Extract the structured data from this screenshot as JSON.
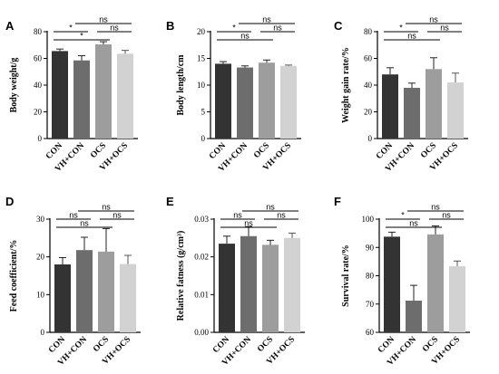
{
  "chart_data": [
    {
      "type": "bar",
      "panel": "A",
      "categories": [
        "CON",
        "VH+CON",
        "OCS",
        "VH+OCS"
      ],
      "values": [
        65.5,
        58.5,
        70.5,
        63.5
      ],
      "errors": [
        1.5,
        3.5,
        2.0,
        2.5
      ],
      "ylabel": "Body weight/g",
      "ylim": [
        0,
        80
      ],
      "yticks": [
        0,
        20,
        40,
        60,
        80
      ],
      "colors": [
        "#333333",
        "#6d6d6d",
        "#9d9d9d",
        "#d2d2d2"
      ],
      "significance": [
        {
          "from": 0,
          "to": 1,
          "label": "*"
        },
        {
          "from": 0,
          "to": 2,
          "label": "*"
        },
        {
          "from": 1,
          "to": 3,
          "label": "ns"
        },
        {
          "from": 2,
          "to": 3,
          "label": "ns"
        }
      ]
    },
    {
      "type": "bar",
      "panel": "B",
      "categories": [
        "CON",
        "VH+CON",
        "OCS",
        "VH+OCS"
      ],
      "values": [
        14.0,
        13.3,
        14.2,
        13.6
      ],
      "errors": [
        0.4,
        0.3,
        0.5,
        0.15
      ],
      "ylabel": "Body length/cm",
      "ylim": [
        0,
        20
      ],
      "yticks": [
        0,
        5,
        10,
        15,
        20
      ],
      "colors": [
        "#333333",
        "#6d6d6d",
        "#9d9d9d",
        "#d2d2d2"
      ],
      "significance": [
        {
          "from": 0,
          "to": 1,
          "label": "*"
        },
        {
          "from": 0,
          "to": 2,
          "label": "ns"
        },
        {
          "from": 1,
          "to": 3,
          "label": "ns"
        },
        {
          "from": 2,
          "to": 3,
          "label": "ns"
        }
      ]
    },
    {
      "type": "bar",
      "panel": "C",
      "categories": [
        "CON",
        "VH+CON",
        "OCS",
        "VH+OCS"
      ],
      "values": [
        48,
        38,
        52,
        42
      ],
      "errors": [
        5,
        3.5,
        8.5,
        7
      ],
      "ylabel": "Weight gain rate/%",
      "ylim": [
        0,
        80
      ],
      "yticks": [
        0,
        20,
        40,
        60,
        80
      ],
      "colors": [
        "#333333",
        "#6d6d6d",
        "#9d9d9d",
        "#d2d2d2"
      ],
      "significance": [
        {
          "from": 0,
          "to": 1,
          "label": "*"
        },
        {
          "from": 0,
          "to": 2,
          "label": "ns"
        },
        {
          "from": 1,
          "to": 3,
          "label": "ns"
        },
        {
          "from": 2,
          "to": 3,
          "label": "ns"
        }
      ]
    },
    {
      "type": "bar",
      "panel": "D",
      "categories": [
        "CON",
        "VH+CON",
        "OCS",
        "VH+OCS"
      ],
      "values": [
        18,
        21.8,
        21.4,
        18.1
      ],
      "errors": [
        1.8,
        3.4,
        6.1,
        2.3
      ],
      "ylabel": "Feed coefficient/%",
      "ylim": [
        0,
        30
      ],
      "yticks": [
        0,
        10,
        20,
        30
      ],
      "colors": [
        "#333333",
        "#6d6d6d",
        "#9d9d9d",
        "#d2d2d2"
      ],
      "significance": [
        {
          "from": 0,
          "to": 1,
          "label": "ns"
        },
        {
          "from": 0,
          "to": 2,
          "label": "ns"
        },
        {
          "from": 1,
          "to": 3,
          "label": "ns"
        },
        {
          "from": 2,
          "to": 3,
          "label": "ns"
        }
      ]
    },
    {
      "type": "bar",
      "panel": "E",
      "categories": [
        "CON",
        "VH+CON",
        "OCS",
        "VH+OCS"
      ],
      "values": [
        0.0235,
        0.0255,
        0.0232,
        0.025
      ],
      "errors": [
        0.002,
        0.0025,
        0.0012,
        0.0013
      ],
      "ylabel": "Relative fatness (g/cm³)",
      "ylim": [
        0,
        0.03
      ],
      "yticks": [
        0,
        0.01,
        0.02,
        0.03
      ],
      "ytick_labels": [
        "0.00",
        "0.01",
        "0.02",
        "0.03"
      ],
      "colors": [
        "#333333",
        "#6d6d6d",
        "#9d9d9d",
        "#d2d2d2"
      ],
      "significance": [
        {
          "from": 0,
          "to": 1,
          "label": "ns"
        },
        {
          "from": 0,
          "to": 2,
          "label": "ns"
        },
        {
          "from": 1,
          "to": 3,
          "label": "ns"
        },
        {
          "from": 2,
          "to": 3,
          "label": "ns"
        }
      ]
    },
    {
      "type": "bar",
      "panel": "F",
      "categories": [
        "CON",
        "VH+CON",
        "OCS",
        "VH+OCS"
      ],
      "values": [
        93.8,
        71.2,
        94.6,
        83.4
      ],
      "errors": [
        1.6,
        5.4,
        3.0,
        1.8
      ],
      "ylabel": "Survival rate/%",
      "ylim": [
        60,
        100
      ],
      "yticks": [
        60,
        70,
        80,
        90,
        100
      ],
      "colors": [
        "#333333",
        "#6d6d6d",
        "#9d9d9d",
        "#d2d2d2"
      ],
      "significance": [
        {
          "from": 0,
          "to": 1,
          "label": "*"
        },
        {
          "from": 0,
          "to": 2,
          "label": "ns"
        },
        {
          "from": 1,
          "to": 3,
          "label": "ns"
        },
        {
          "from": 2,
          "to": 3,
          "label": "ns"
        }
      ]
    }
  ]
}
